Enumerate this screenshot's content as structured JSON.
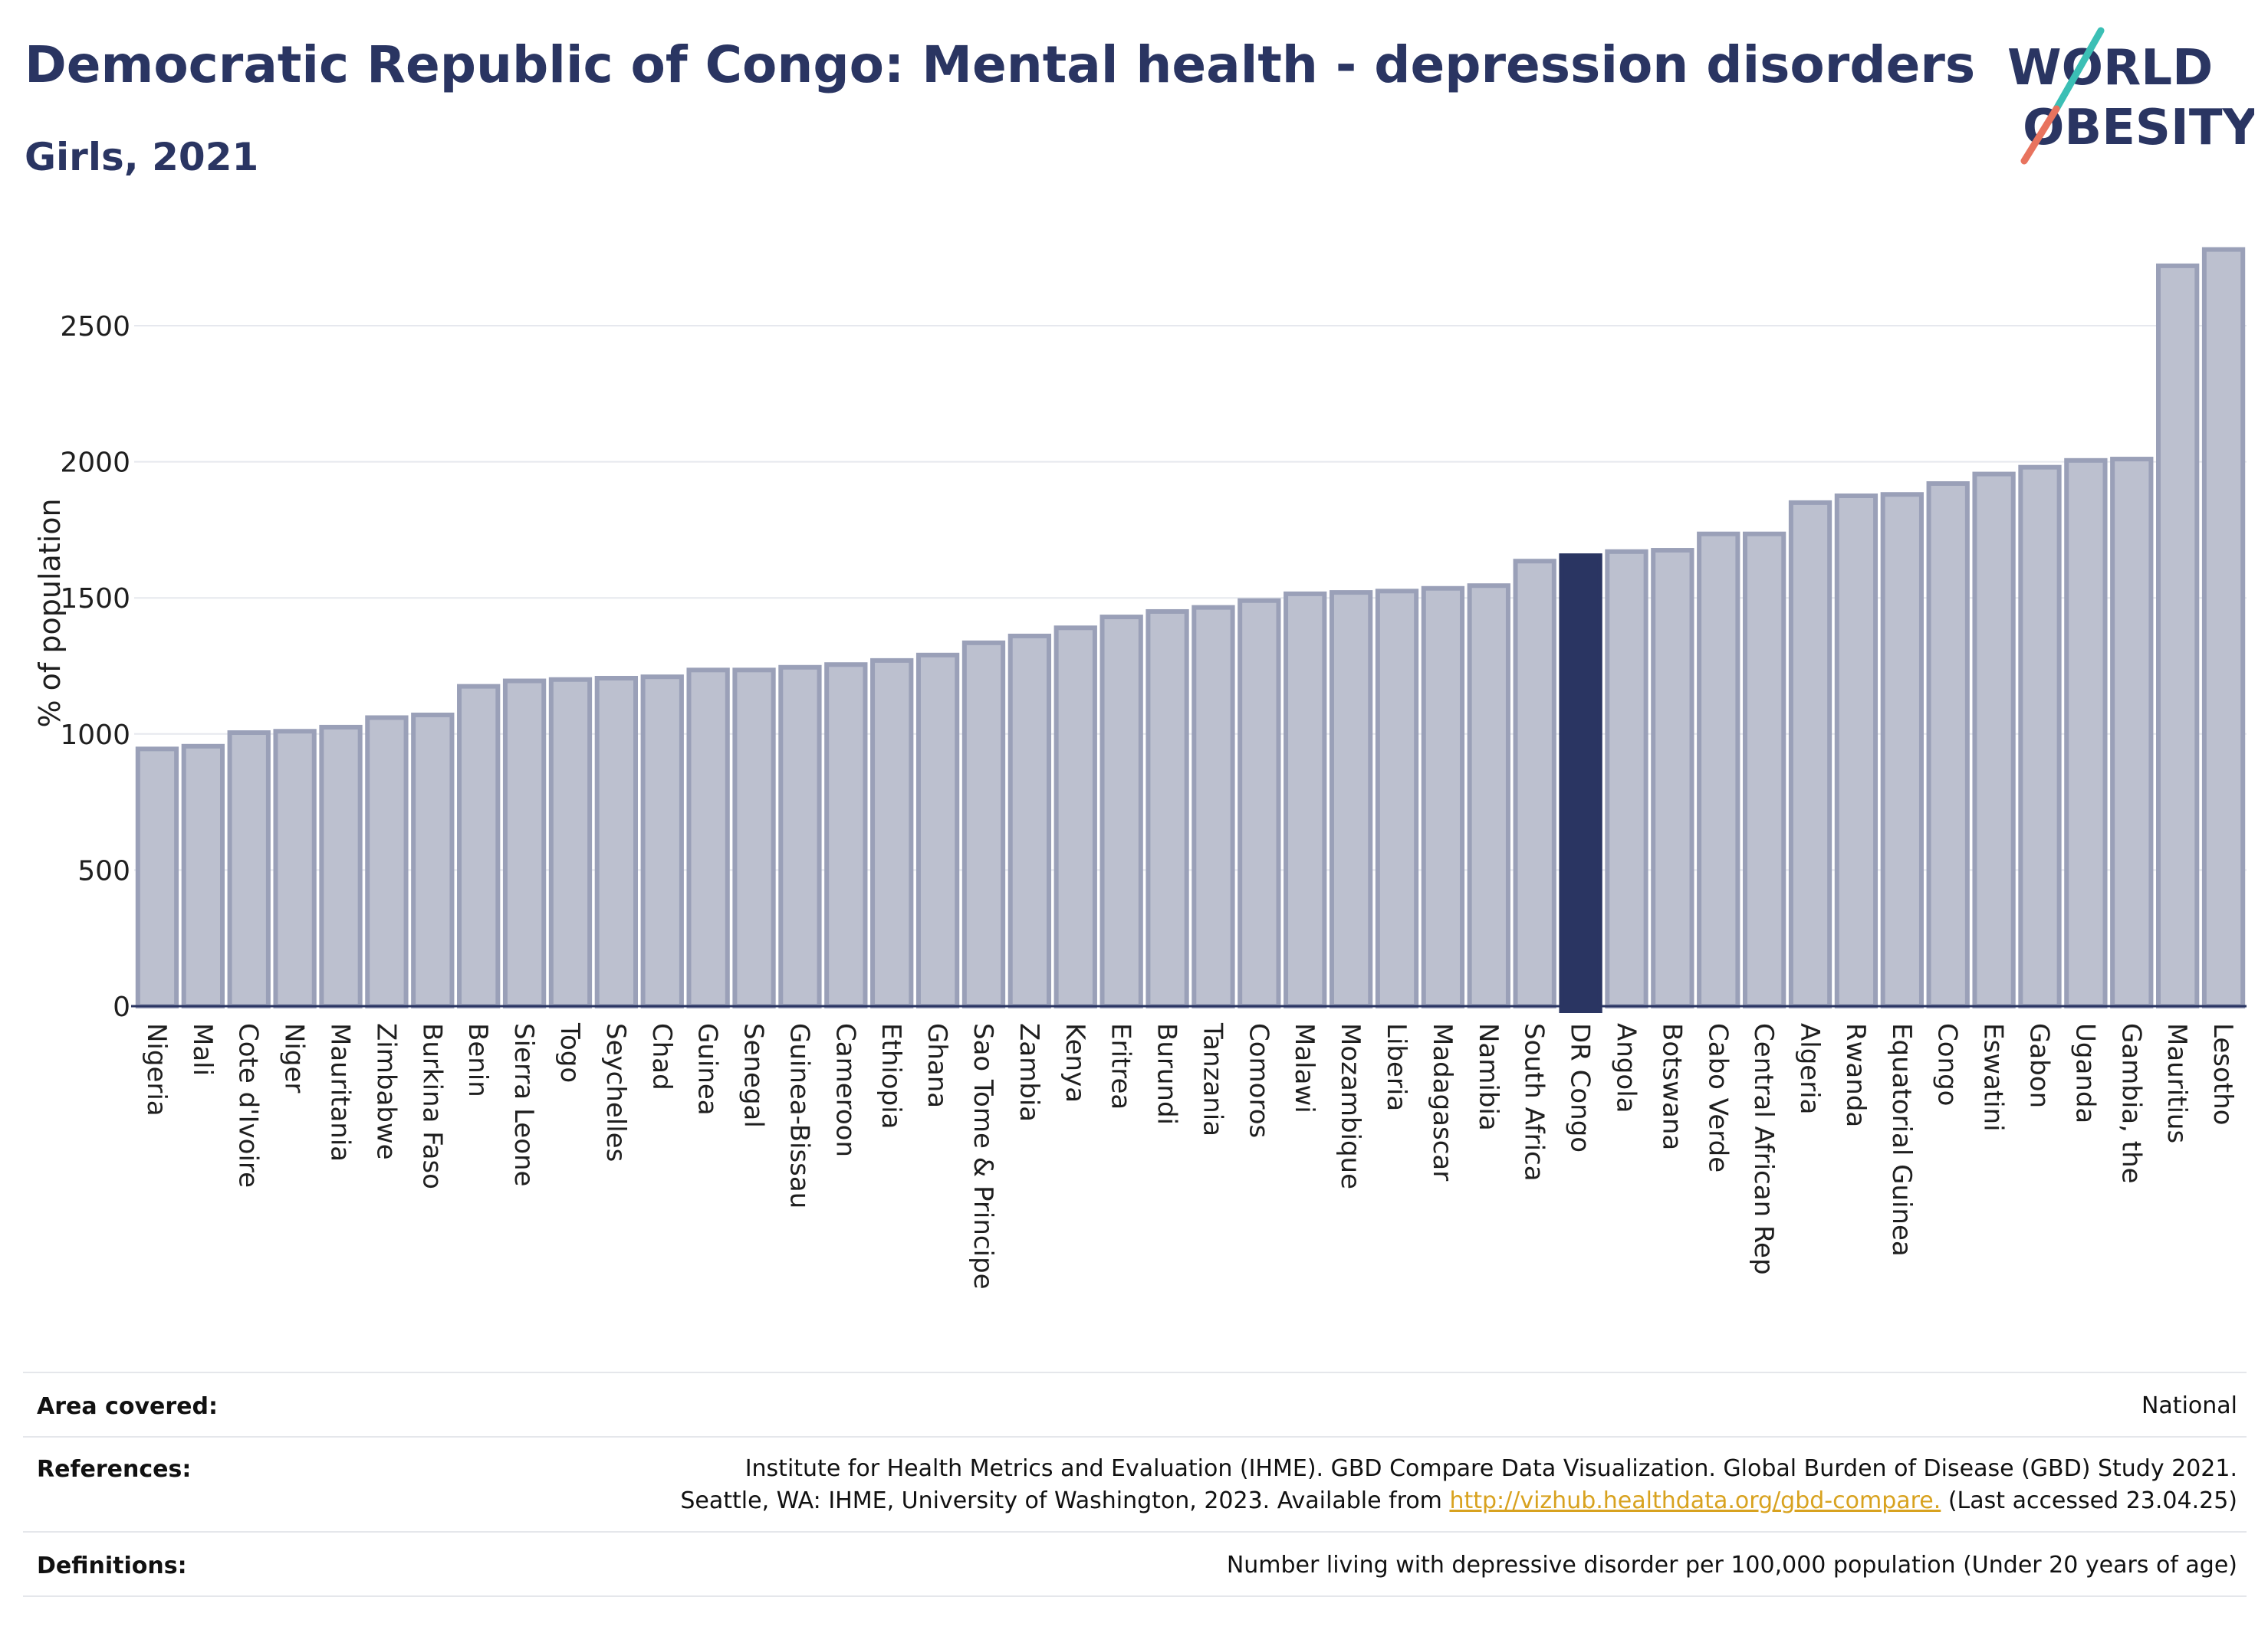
{
  "header": {
    "title": "Democratic Republic of Congo: Mental health - depression disorders",
    "subtitle": "Girls, 2021"
  },
  "logo": {
    "line1": "WORLD",
    "line2": "OBESITY",
    "colors": {
      "text": "#2a3562",
      "slash_top": "#3bbfb5",
      "slash_bottom": "#e8735e"
    }
  },
  "chart_data": {
    "type": "bar",
    "ylabel": "% of population",
    "xlabel": "",
    "ylim": [
      0,
      2800
    ],
    "yticks": [
      0,
      500,
      1000,
      1500,
      2000,
      2500
    ],
    "grid": true,
    "highlight": "DR Congo",
    "colors": {
      "bar": "#bcc0cf",
      "bar_border": "#9aa0b8",
      "highlight": "#2a3562"
    },
    "categories": [
      "Nigeria",
      "Mali",
      "Cote d'Ivoire",
      "Niger",
      "Mauritania",
      "Zimbabwe",
      "Burkina Faso",
      "Benin",
      "Sierra Leone",
      "Togo",
      "Seychelles",
      "Chad",
      "Guinea",
      "Senegal",
      "Guinea-Bissau",
      "Cameroon",
      "Ethiopia",
      "Ghana",
      "Sao Tome & Principe",
      "Zambia",
      "Kenya",
      "Eritrea",
      "Burundi",
      "Tanzania",
      "Comoros",
      "Malawi",
      "Mozambique",
      "Liberia",
      "Madagascar",
      "Namibia",
      "South Africa",
      "DR Congo",
      "Angola",
      "Botswana",
      "Cabo Verde",
      "Central African Rep",
      "Algeria",
      "Rwanda",
      "Equatorial Guinea",
      "Congo",
      "Eswatini",
      "Gabon",
      "Uganda",
      "Gambia, the",
      "Mauritius",
      "Lesotho"
    ],
    "values": [
      945,
      955,
      1005,
      1010,
      1025,
      1060,
      1070,
      1175,
      1195,
      1200,
      1205,
      1210,
      1235,
      1235,
      1245,
      1255,
      1270,
      1290,
      1335,
      1360,
      1390,
      1430,
      1450,
      1465,
      1490,
      1515,
      1520,
      1525,
      1535,
      1545,
      1635,
      1655,
      1670,
      1675,
      1735,
      1735,
      1850,
      1875,
      1880,
      1920,
      1955,
      1980,
      2005,
      2010,
      2720,
      2780
    ]
  },
  "info": {
    "area_label": "Area covered:",
    "area_value": "National",
    "references_label": "References:",
    "references_line1": "Institute for Health Metrics and Evaluation (IHME). GBD Compare Data Visualization. Global Burden of Disease (GBD) Study 2021.",
    "references_line2_pre": "Seattle, WA: IHME, University of Washington, 2023. Available from ",
    "references_link": "http://vizhub.healthdata.org/gbd-compare.",
    "references_line2_post": " (Last accessed 23.04.25)",
    "definitions_label": "Definitions:",
    "definitions_value": "Number living with depressive disorder per 100,000 population (Under 20 years of age)"
  }
}
